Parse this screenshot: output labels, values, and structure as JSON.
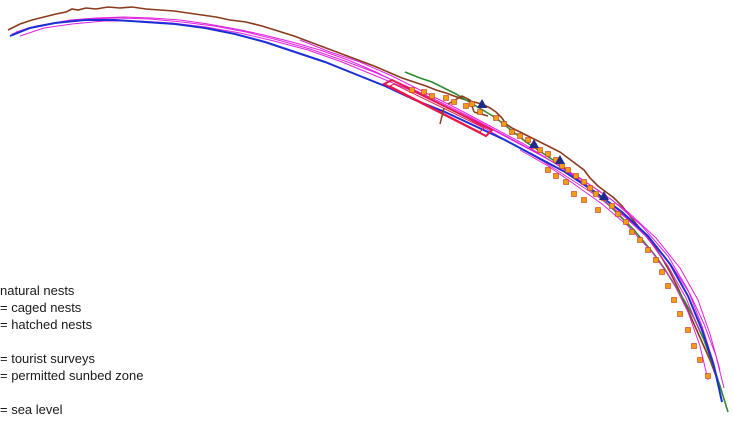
{
  "legend": {
    "natural_nests": "natural nests",
    "caged_nests": "= caged nests",
    "hatched_nests": "= hatched nests",
    "tourist_surveys": "= tourist surveys",
    "sunbed_zone": "= permitted sunbed zone",
    "sea_level": "= sea level"
  },
  "colors": {
    "vegetation_line": "#8b3a1a",
    "green_line": "#2e8b2e",
    "sea_level": "#1c2fd6",
    "tracks": "#e020e0",
    "nests": "#f39c12",
    "nest_outline": "#c0392b",
    "sunbed_zone": "#e8174a",
    "survey_marker": "#1f2a8a"
  },
  "icons": {
    "nest_marker": "square-icon",
    "hatched_marker": "triangle-icon",
    "survey_marker": "triangle-icon"
  }
}
